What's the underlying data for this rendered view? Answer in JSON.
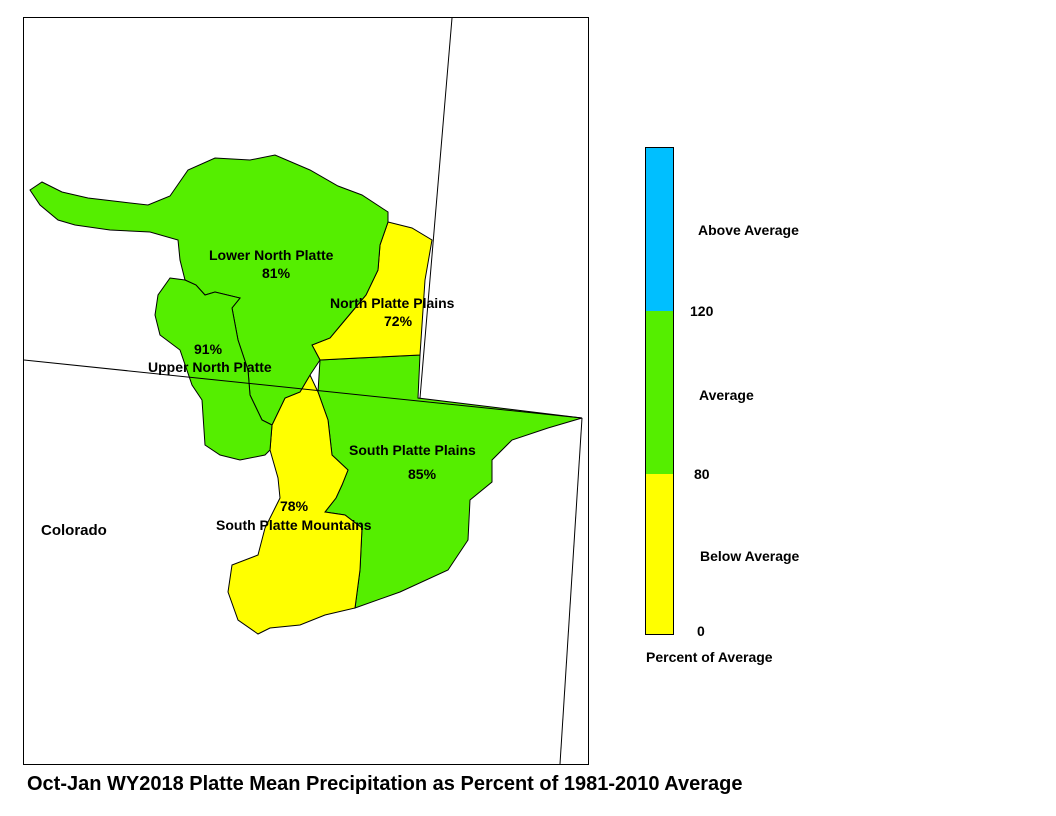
{
  "title": "Oct-Jan WY2018 Platte Mean Precipitation as Percent of 1981-2010 Average",
  "state_label": "Colorado",
  "colors": {
    "above": "#00BFFF",
    "average": "#55EE00",
    "below": "#FFFF00",
    "border": "#000000"
  },
  "basins": [
    {
      "name": "Lower North Platte",
      "percent": "81%",
      "category": "average"
    },
    {
      "name": "North Platte Plains",
      "percent": "72%",
      "category": "below"
    },
    {
      "name": "Upper North Platte",
      "percent": "91%",
      "category": "average"
    },
    {
      "name": "South Platte Plains",
      "percent": "85%",
      "category": "average"
    },
    {
      "name": "South Platte Mountains",
      "percent": "78%",
      "category": "below"
    }
  ],
  "legend": {
    "title": "Percent of Average",
    "ticks": [
      "120",
      "80",
      "0"
    ],
    "categories": [
      "Above Average",
      "Average",
      "Below Average"
    ]
  }
}
